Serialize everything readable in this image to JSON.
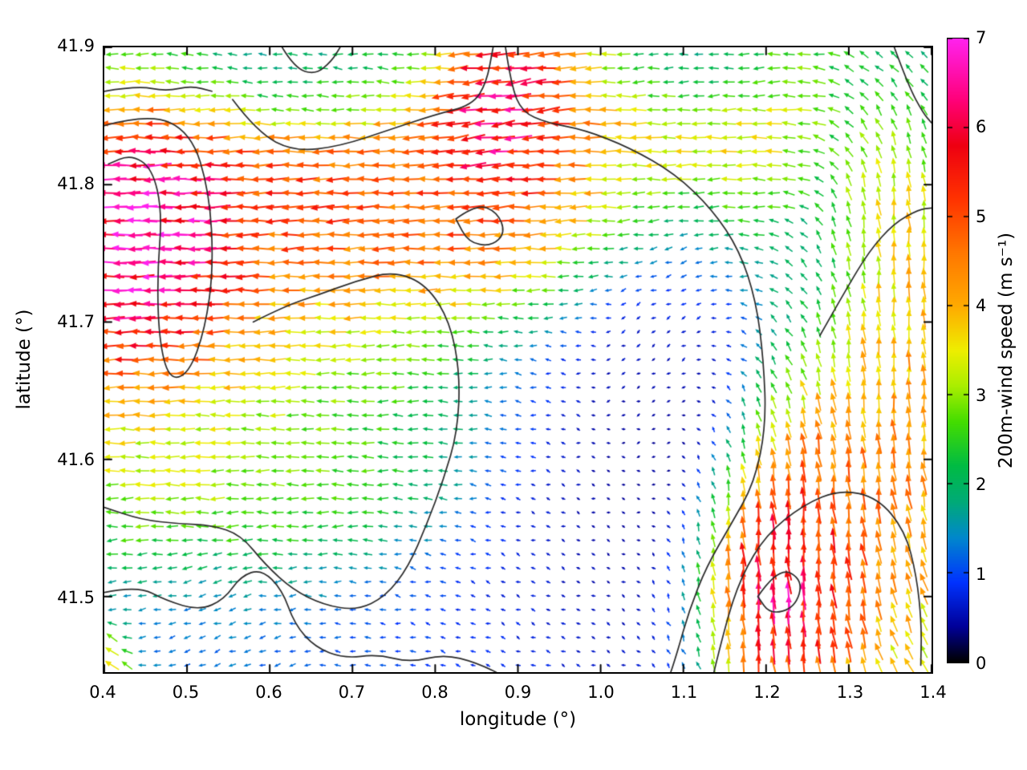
{
  "figure": {
    "background": "#ffffff"
  },
  "chart_data": {
    "type": "quiver",
    "title": "",
    "xlabel": "longitude (°)",
    "ylabel": "latitude (°)",
    "xlim": [
      0.4,
      1.4
    ],
    "ylim": [
      41.445,
      41.9
    ],
    "grid_on": false,
    "x_ticks": {
      "values": [
        0.4,
        0.5,
        0.6,
        0.7,
        0.8,
        0.9,
        1.0,
        1.1,
        1.2,
        1.3,
        1.4
      ],
      "labels": [
        "0.4",
        "0.5",
        "0.6",
        "0.7",
        "0.8",
        "0.9",
        "1.0",
        "1.1",
        "1.2",
        "1.3",
        "1.4"
      ]
    },
    "y_ticks": {
      "values": [
        41.5,
        41.6,
        41.7,
        41.8,
        41.9
      ],
      "labels": [
        "41.5",
        "41.6",
        "41.7",
        "41.8",
        "41.9"
      ]
    },
    "colorbar": {
      "label": "200m-wind speed (m s⁻¹)",
      "min": 0,
      "max": 7,
      "tick_values": [
        0,
        1,
        2,
        3,
        4,
        5,
        6,
        7
      ],
      "tick_labels": [
        "0",
        "1",
        "2",
        "3",
        "4",
        "5",
        "6",
        "7"
      ],
      "position": "right",
      "palette": [
        [
          0,
          "#000000"
        ],
        [
          0.4,
          "#000099"
        ],
        [
          0.9,
          "#0033ff"
        ],
        [
          1.4,
          "#0088cc"
        ],
        [
          1.8,
          "#00aa77"
        ],
        [
          2.2,
          "#00bb44"
        ],
        [
          2.7,
          "#44dd00"
        ],
        [
          3.1,
          "#aaee00"
        ],
        [
          3.5,
          "#eeee00"
        ],
        [
          4.0,
          "#ffaa00"
        ],
        [
          4.6,
          "#ff7700"
        ],
        [
          5.2,
          "#ff3300"
        ],
        [
          5.8,
          "#ee0011"
        ],
        [
          6.3,
          "#ff0077"
        ],
        [
          7,
          "#ff22ee"
        ]
      ]
    },
    "grid": {
      "nx": 55,
      "ny": 45
    },
    "base_flow": {
      "speed": 2.1,
      "dir_deg": 180,
      "weight": 0.5
    },
    "features_key": "[lon, lat, sigma_lon, sigma_lat, speed_ms, dir_deg_ccw_from_east, weight]",
    "features": [
      [
        0.455,
        41.755,
        0.055,
        0.05,
        7.4,
        180,
        10
      ],
      [
        0.5,
        41.745,
        0.11,
        0.085,
        5.6,
        180,
        2.5
      ],
      [
        0.56,
        41.7,
        0.13,
        0.05,
        4.4,
        185,
        2
      ],
      [
        0.72,
        41.79,
        0.17,
        0.05,
        5.4,
        182,
        3
      ],
      [
        0.95,
        41.845,
        0.18,
        0.045,
        4.4,
        178,
        2
      ],
      [
        0.875,
        41.85,
        0.045,
        0.03,
        6.8,
        190,
        8
      ],
      [
        0.52,
        41.6,
        0.22,
        0.05,
        3.2,
        180,
        1.5
      ],
      [
        1.0,
        41.55,
        0.1,
        0.09,
        0.35,
        120,
        4
      ],
      [
        1.07,
        41.64,
        0.055,
        0.09,
        0.7,
        250,
        3
      ],
      [
        0.85,
        41.47,
        0.13,
        0.05,
        0.8,
        150,
        2.5
      ],
      [
        0.5,
        41.465,
        0.12,
        0.045,
        1.1,
        210,
        2
      ],
      [
        0.6,
        41.655,
        0.15,
        0.05,
        1.6,
        175,
        2
      ],
      [
        1.22,
        41.515,
        0.065,
        0.05,
        6.6,
        92,
        5
      ],
      [
        1.21,
        41.51,
        0.03,
        0.025,
        7.2,
        95,
        4
      ],
      [
        1.31,
        41.565,
        0.09,
        0.07,
        4.8,
        100,
        3
      ],
      [
        1.35,
        41.69,
        0.05,
        0.09,
        4.6,
        88,
        3.5
      ],
      [
        0.6,
        41.88,
        0.09,
        0.028,
        0.8,
        160,
        3
      ],
      [
        0.43,
        41.86,
        0.06,
        0.04,
        1.8,
        180,
        1.5
      ],
      [
        1.28,
        41.72,
        0.05,
        0.04,
        1.5,
        140,
        1.5
      ],
      [
        1.37,
        41.46,
        0.06,
        0.045,
        3.6,
        120,
        2
      ],
      [
        1.1,
        41.885,
        0.06,
        0.022,
        0.9,
        200,
        2
      ],
      [
        0.75,
        41.88,
        0.07,
        0.03,
        1.5,
        170,
        1.5
      ],
      [
        0.405,
        41.448,
        0.02,
        0.017,
        5.5,
        135,
        3
      ]
    ],
    "contour_color": "#2a2a2a",
    "contours": [
      [
        [
          0.4,
          41.843
        ],
        [
          0.455,
          41.852
        ],
        [
          0.505,
          41.838
        ],
        [
          0.527,
          41.795
        ],
        [
          0.532,
          41.74
        ],
        [
          0.522,
          41.695
        ],
        [
          0.502,
          41.662
        ],
        [
          0.478,
          41.658
        ],
        [
          0.466,
          41.688
        ],
        [
          0.464,
          41.735
        ],
        [
          0.47,
          41.78
        ],
        [
          0.458,
          41.812
        ],
        [
          0.432,
          41.822
        ],
        [
          0.405,
          41.815
        ]
      ],
      [
        [
          0.555,
          41.862
        ],
        [
          0.585,
          41.838
        ],
        [
          0.63,
          41.824
        ],
        [
          0.685,
          41.828
        ],
        [
          0.745,
          41.84
        ],
        [
          0.8,
          41.851
        ],
        [
          0.845,
          41.858
        ],
        [
          0.862,
          41.874
        ],
        [
          0.87,
          41.9
        ]
      ],
      [
        [
          0.4,
          41.868
        ],
        [
          0.44,
          41.872
        ],
        [
          0.475,
          41.868
        ],
        [
          0.505,
          41.872
        ],
        [
          0.53,
          41.868
        ]
      ],
      [
        [
          0.615,
          41.9
        ],
        [
          0.63,
          41.885
        ],
        [
          0.655,
          41.88
        ],
        [
          0.675,
          41.89
        ],
        [
          0.685,
          41.9
        ]
      ],
      [
        [
          0.885,
          41.9
        ],
        [
          0.892,
          41.872
        ],
        [
          0.905,
          41.853
        ],
        [
          0.935,
          41.845
        ],
        [
          0.98,
          41.84
        ],
        [
          1.035,
          41.827
        ],
        [
          1.09,
          41.808
        ],
        [
          1.135,
          41.782
        ],
        [
          1.168,
          41.752
        ],
        [
          1.188,
          41.715
        ],
        [
          1.197,
          41.672
        ],
        [
          1.2,
          41.625
        ],
        [
          1.186,
          41.583
        ],
        [
          1.157,
          41.552
        ],
        [
          1.128,
          41.522
        ],
        [
          1.107,
          41.49
        ],
        [
          1.092,
          41.458
        ],
        [
          1.082,
          41.44
        ]
      ],
      [
        [
          0.58,
          41.7
        ],
        [
          0.62,
          41.712
        ],
        [
          0.66,
          41.72
        ],
        [
          0.705,
          41.73
        ],
        [
          0.75,
          41.737
        ],
        [
          0.79,
          41.727
        ],
        [
          0.818,
          41.7
        ],
        [
          0.83,
          41.662
        ],
        [
          0.827,
          41.62
        ],
        [
          0.81,
          41.585
        ],
        [
          0.79,
          41.553
        ],
        [
          0.768,
          41.522
        ],
        [
          0.74,
          41.5
        ],
        [
          0.705,
          41.49
        ],
        [
          0.665,
          41.494
        ],
        [
          0.628,
          41.505
        ],
        [
          0.595,
          41.523
        ],
        [
          0.565,
          41.545
        ],
        [
          0.53,
          41.552
        ],
        [
          0.49,
          41.553
        ],
        [
          0.445,
          41.556
        ],
        [
          0.4,
          41.565
        ]
      ],
      [
        [
          0.825,
          41.775
        ],
        [
          0.85,
          41.786
        ],
        [
          0.875,
          41.78
        ],
        [
          0.885,
          41.765
        ],
        [
          0.868,
          41.755
        ],
        [
          0.84,
          41.758
        ],
        [
          0.825,
          41.775
        ]
      ],
      [
        [
          0.4,
          41.503
        ],
        [
          0.44,
          41.508
        ],
        [
          0.475,
          41.497
        ],
        [
          0.515,
          41.49
        ],
        [
          0.545,
          41.498
        ],
        [
          0.565,
          41.515
        ],
        [
          0.59,
          41.52
        ],
        [
          0.615,
          41.505
        ],
        [
          0.63,
          41.48
        ],
        [
          0.655,
          41.463
        ],
        [
          0.69,
          41.455
        ],
        [
          0.73,
          41.458
        ],
        [
          0.77,
          41.452
        ],
        [
          0.81,
          41.458
        ],
        [
          0.85,
          41.452
        ],
        [
          0.89,
          41.44
        ]
      ],
      [
        [
          1.135,
          41.44
        ],
        [
          1.15,
          41.478
        ],
        [
          1.17,
          41.515
        ],
        [
          1.2,
          41.545
        ],
        [
          1.245,
          41.567
        ],
        [
          1.29,
          41.578
        ],
        [
          1.335,
          41.572
        ],
        [
          1.368,
          41.548
        ],
        [
          1.382,
          41.515
        ],
        [
          1.388,
          41.48
        ],
        [
          1.387,
          41.45
        ]
      ],
      [
        [
          1.19,
          41.5
        ],
        [
          1.215,
          41.522
        ],
        [
          1.245,
          41.512
        ],
        [
          1.235,
          41.492
        ],
        [
          1.205,
          41.487
        ],
        [
          1.19,
          41.5
        ]
      ],
      [
        [
          1.265,
          41.69
        ],
        [
          1.295,
          41.722
        ],
        [
          1.325,
          41.752
        ],
        [
          1.355,
          41.772
        ],
        [
          1.385,
          41.782
        ],
        [
          1.4,
          41.783
        ]
      ],
      [
        [
          1.355,
          41.9
        ],
        [
          1.372,
          41.872
        ],
        [
          1.39,
          41.852
        ],
        [
          1.4,
          41.845
        ]
      ]
    ]
  }
}
